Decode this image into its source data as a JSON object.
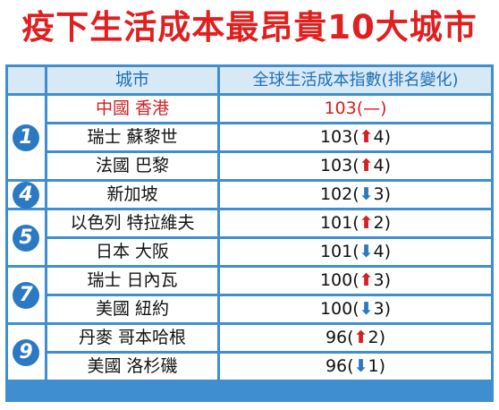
{
  "title": "疫下生活成本最昂貴10大城市",
  "header": {
    "city": "城市",
    "index": "全球生活成本指數(排名變化)"
  },
  "groups": [
    {
      "rank": "1",
      "rows": [
        {
          "city": "中國 香港",
          "index": "103",
          "change_sign": "",
          "change": "(—)",
          "highlight": true
        },
        {
          "city": "瑞士 蘇黎世",
          "index": "103",
          "change_sign": "up",
          "change": "4"
        },
        {
          "city": "法國 巴黎",
          "index": "103",
          "change_sign": "up",
          "change": "4"
        }
      ]
    },
    {
      "rank": "4",
      "rows": [
        {
          "city": "新加坡",
          "index": "102",
          "change_sign": "down",
          "change": "3"
        }
      ]
    },
    {
      "rank": "5",
      "rows": [
        {
          "city": "以色列 特拉維夫",
          "index": "101",
          "change_sign": "up",
          "change": "2"
        },
        {
          "city": "日本 大阪",
          "index": "101",
          "change_sign": "down",
          "change": "4"
        }
      ]
    },
    {
      "rank": "7",
      "rows": [
        {
          "city": "瑞士 日內瓦",
          "index": "100",
          "change_sign": "up",
          "change": "3"
        },
        {
          "city": "美國 紐約",
          "index": "100",
          "change_sign": "down",
          "change": "3"
        }
      ]
    },
    {
      "rank": "9",
      "rows": [
        {
          "city": "丹麥 哥本哈根",
          "index": "96",
          "change_sign": "up",
          "change": "2"
        },
        {
          "city": "美國 洛杉磯",
          "index": "96",
          "change_sign": "down",
          "change": "1"
        }
      ]
    }
  ],
  "colors": {
    "title": "#e02020",
    "border": "#3f8fd0",
    "header_bg": "#d7e8f6",
    "header_text": "#1e6fb5",
    "up": "#d42020",
    "down": "#2b79c2"
  }
}
